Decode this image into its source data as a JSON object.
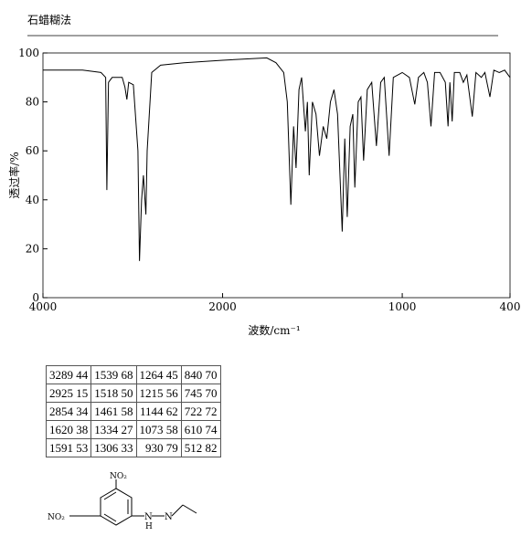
{
  "header": {
    "title": "石蜡糊法"
  },
  "chart_data": {
    "type": "line",
    "x_label": "波数/cm⁻¹",
    "y_label": "透过率/%",
    "xlim": [
      4000,
      400
    ],
    "ylim": [
      0,
      100
    ],
    "xticks": [
      4000,
      2000,
      1000,
      400
    ],
    "yticks": [
      0,
      20,
      40,
      60,
      80,
      100
    ],
    "xscale": {
      "break": 2000,
      "ratio": 0.5
    },
    "series": [
      {
        "color": "#000000",
        "x": [
          4000,
          3559,
          3354,
          3302,
          3289,
          3270,
          3230,
          3118,
          3087,
          3066,
          3045,
          2994,
          2943,
          2925,
          2902,
          2882,
          2854,
          2840,
          2789,
          2690,
          2430,
          2000,
          1754,
          1703,
          1660,
          1640,
          1620,
          1605,
          1591,
          1575,
          1560,
          1539,
          1528,
          1518,
          1500,
          1480,
          1461,
          1440,
          1420,
          1400,
          1380,
          1360,
          1334,
          1320,
          1306,
          1290,
          1275,
          1264,
          1245,
          1230,
          1215,
          1195,
          1170,
          1144,
          1120,
          1100,
          1073,
          1050,
          1000,
          960,
          930,
          910,
          880,
          860,
          840,
          820,
          790,
          760,
          745,
          735,
          722,
          710,
          680,
          660,
          640,
          610,
          590,
          560,
          540,
          512,
          490,
          460,
          430,
          400
        ],
        "values": [
          93,
          93,
          92,
          90,
          44,
          88,
          90,
          90,
          86,
          81,
          88,
          87,
          60,
          15,
          40,
          50,
          34,
          60,
          92,
          95,
          96,
          97,
          98,
          96,
          92,
          80,
          38,
          70,
          53,
          85,
          90,
          68,
          80,
          50,
          80,
          75,
          58,
          70,
          65,
          80,
          85,
          75,
          27,
          65,
          33,
          70,
          75,
          45,
          80,
          82,
          56,
          85,
          88,
          62,
          88,
          90,
          58,
          90,
          92,
          90,
          79,
          90,
          92,
          88,
          70,
          92,
          92,
          88,
          70,
          88,
          72,
          92,
          92,
          88,
          91,
          74,
          92,
          90,
          92,
          82,
          93,
          92,
          93,
          90
        ]
      }
    ]
  },
  "table": {
    "rows": [
      [
        "3289 44",
        "1539 68",
        "1264 45",
        "840 70"
      ],
      [
        "2925 15",
        "1518 50",
        "1215 56",
        "745 70"
      ],
      [
        "2854 34",
        "1461 58",
        "1144 62",
        "722 72"
      ],
      [
        "1620 38",
        "1334 27",
        "1073 58",
        "610 74"
      ],
      [
        "1591 53",
        "1306 33",
        "930 79",
        "512 82"
      ]
    ]
  },
  "structure": {
    "left_group": "NO₂",
    "top_group": "NO₂",
    "nh_n": "N",
    "nh_h": "H",
    "imine_n": "N"
  }
}
